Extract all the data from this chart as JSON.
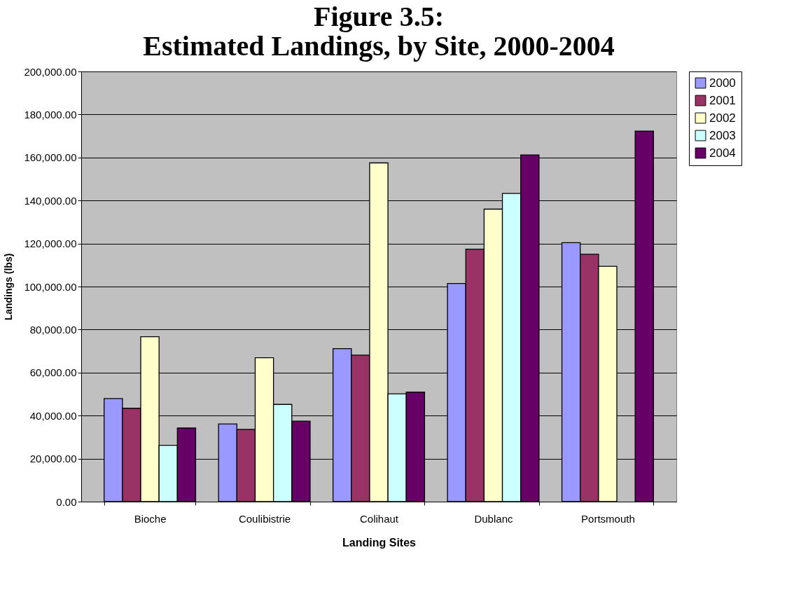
{
  "chart_data": {
    "type": "bar",
    "title": "Figure 3.5:\nEstimated Landings, by Site, 2000-2004",
    "xlabel": "Landing Sites",
    "ylabel": "Landings (lbs)",
    "categories": [
      "Bioche",
      "Coulibistrie",
      "Colihaut",
      "Dublanc",
      "Portsmouth"
    ],
    "series": [
      {
        "name": "2000",
        "color": "#9999ff",
        "values": [
          47900,
          36100,
          71100,
          101400,
          120400
        ]
      },
      {
        "name": "2001",
        "color": "#993366",
        "values": [
          43400,
          33600,
          68100,
          117400,
          115000
        ]
      },
      {
        "name": "2002",
        "color": "#ffffcc",
        "values": [
          76700,
          66900,
          157500,
          136000,
          109400
        ]
      },
      {
        "name": "2003",
        "color": "#ccffff",
        "values": [
          26200,
          45200,
          50100,
          143300,
          null
        ]
      },
      {
        "name": "2004",
        "color": "#660066",
        "values": [
          34200,
          37400,
          50900,
          161200,
          172300
        ]
      }
    ],
    "ylim": [
      0,
      200000
    ],
    "yticks": [
      {
        "value": 0,
        "label": "0.00"
      },
      {
        "value": 20000,
        "label": "20,000.00"
      },
      {
        "value": 40000,
        "label": "40,000.00"
      },
      {
        "value": 60000,
        "label": "60,000.00"
      },
      {
        "value": 80000,
        "label": "80,000.00"
      },
      {
        "value": 100000,
        "label": "100,000.00"
      },
      {
        "value": 120000,
        "label": "120,000.00"
      },
      {
        "value": 140000,
        "label": "140,000.00"
      },
      {
        "value": 160000,
        "label": "160,000.00"
      },
      {
        "value": 180000,
        "label": "180,000.00"
      },
      {
        "value": 200000,
        "label": "200,000.00"
      }
    ],
    "grid": "y",
    "legend": "right"
  }
}
